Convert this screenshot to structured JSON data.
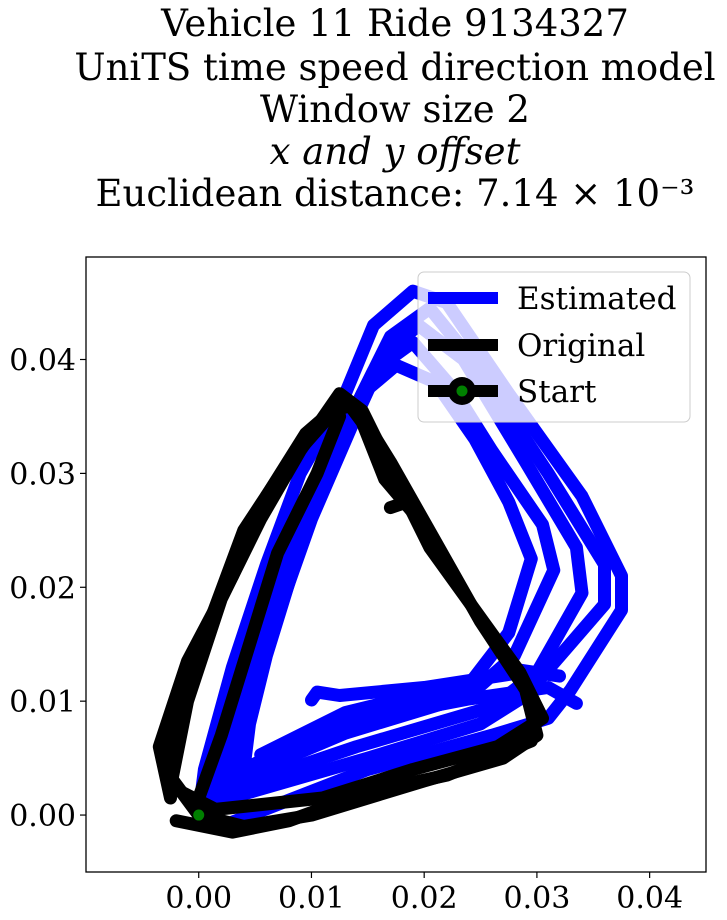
{
  "chart_data": {
    "type": "line",
    "title_lines": [
      "Vehicle 11 Ride 9134327",
      "UniTS time speed direction model",
      "Window size 2",
      "x and y offset",
      "Euclidean distance: 7.14 × 10⁻³"
    ],
    "xlabel": "",
    "ylabel": "",
    "xlim": [
      -0.01,
      0.045
    ],
    "ylim": [
      -0.005,
      0.049
    ],
    "x_ticks": [
      "0.00",
      "0.01",
      "0.02",
      "0.03",
      "0.04"
    ],
    "y_ticks": [
      "0.00",
      "0.01",
      "0.02",
      "0.03",
      "0.04"
    ],
    "x_tick_values": [
      0.0,
      0.01,
      0.02,
      0.03,
      0.04
    ],
    "y_tick_values": [
      0.0,
      0.01,
      0.02,
      0.03,
      0.04
    ],
    "grid": false,
    "legend_position": "top-right",
    "legend": [
      "Estimated",
      "Original",
      "Start"
    ],
    "series": [
      {
        "name": "Estimated",
        "color": "#0000ff",
        "laps": [
          [
            [
              0.0,
              0.0
            ],
            [
              0.002,
              -0.001
            ],
            [
              0.015,
              0.004
            ],
            [
              0.026,
              0.007
            ],
            [
              0.031,
              0.0085
            ],
            [
              0.033,
              0.011
            ],
            [
              0.0375,
              0.018
            ],
            [
              0.0375,
              0.021
            ],
            [
              0.034,
              0.028
            ],
            [
              0.0275,
              0.037
            ],
            [
              0.022,
              0.045
            ],
            [
              0.019,
              0.046
            ],
            [
              0.0155,
              0.043
            ],
            [
              0.013,
              0.037
            ],
            [
              0.009,
              0.03
            ],
            [
              0.006,
              0.022
            ],
            [
              0.003,
              0.013
            ],
            [
              0.0005,
              0.004
            ],
            [
              0.0,
              0.0
            ]
          ],
          [
            [
              0.001,
              0.001
            ],
            [
              0.015,
              0.005
            ],
            [
              0.025,
              0.008
            ],
            [
              0.029,
              0.0105
            ],
            [
              0.036,
              0.0185
            ],
            [
              0.036,
              0.022
            ],
            [
              0.031,
              0.03
            ],
            [
              0.025,
              0.039
            ],
            [
              0.0205,
              0.0445
            ],
            [
              0.017,
              0.042
            ],
            [
              0.014,
              0.036
            ],
            [
              0.01,
              0.028
            ],
            [
              0.007,
              0.02
            ],
            [
              0.0035,
              0.011
            ],
            [
              0.001,
              0.001
            ]
          ],
          [
            [
              0.002,
              0.002
            ],
            [
              0.014,
              0.006
            ],
            [
              0.026,
              0.0095
            ],
            [
              0.03,
              0.0125
            ],
            [
              0.034,
              0.0195
            ],
            [
              0.0335,
              0.0235
            ],
            [
              0.029,
              0.031
            ],
            [
              0.0235,
              0.04
            ],
            [
              0.0195,
              0.043
            ],
            [
              0.0165,
              0.0405
            ],
            [
              0.0135,
              0.034
            ],
            [
              0.01,
              0.026
            ],
            [
              0.0075,
              0.019
            ],
            [
              0.004,
              0.0095
            ],
            [
              0.002,
              0.002
            ]
          ],
          [
            [
              0.003,
              0.003
            ],
            [
              0.013,
              0.0072
            ],
            [
              0.024,
              0.0105
            ],
            [
              0.028,
              0.014
            ],
            [
              0.0315,
              0.0215
            ],
            [
              0.0305,
              0.0255
            ],
            [
              0.026,
              0.032
            ],
            [
              0.0225,
              0.0375
            ],
            [
              0.019,
              0.0415
            ],
            [
              0.0155,
              0.039
            ],
            [
              0.012,
              0.032
            ],
            [
              0.009,
              0.024
            ],
            [
              0.0065,
              0.016
            ],
            [
              0.004,
              0.0075
            ],
            [
              0.003,
              0.003
            ]
          ],
          [
            [
              0.004,
              0.004
            ],
            [
              0.012,
              0.008
            ],
            [
              0.024,
              0.0115
            ],
            [
              0.0275,
              0.016
            ],
            [
              0.0295,
              0.0225
            ],
            [
              0.0275,
              0.0275
            ],
            [
              0.0245,
              0.033
            ],
            [
              0.021,
              0.038
            ],
            [
              0.0175,
              0.0395
            ],
            [
              0.0145,
              0.037
            ],
            [
              0.011,
              0.029
            ],
            [
              0.0085,
              0.022
            ],
            [
              0.006,
              0.014
            ],
            [
              0.0045,
              0.008
            ],
            [
              0.004,
              0.004
            ]
          ],
          [
            [
              0.0055,
              0.0053
            ],
            [
              0.013,
              0.009
            ],
            [
              0.0225,
              0.0113
            ],
            [
              0.028,
              0.0128
            ],
            [
              0.032,
              0.0122
            ]
          ],
          [
            [
              0.008,
              0.006
            ],
            [
              0.015,
              0.0085
            ],
            [
              0.024,
              0.0102
            ],
            [
              0.031,
              0.0112
            ],
            [
              0.0335,
              0.0098
            ]
          ],
          [
            [
              0.01,
              0.0101
            ],
            [
              0.0105,
              0.0108
            ],
            [
              0.0125,
              0.0105
            ],
            [
              0.02,
              0.0112
            ],
            [
              0.0285,
              0.0125
            ]
          ]
        ]
      },
      {
        "name": "Original",
        "color": "#000000",
        "laps": [
          [
            [
              0.0,
              0.0
            ],
            [
              -0.003,
              0.004
            ],
            [
              -0.002,
              0.009
            ],
            [
              0.001,
              0.017
            ],
            [
              0.004,
              0.025
            ],
            [
              0.008,
              0.031
            ],
            [
              0.012,
              0.0355
            ],
            [
              0.0135,
              0.036
            ],
            [
              0.0145,
              0.035
            ],
            [
              0.017,
              0.031
            ],
            [
              0.021,
              0.024
            ],
            [
              0.025,
              0.017
            ],
            [
              0.029,
              0.011
            ],
            [
              0.03,
              0.007
            ],
            [
              0.027,
              0.005
            ],
            [
              0.02,
              0.003
            ],
            [
              0.01,
              0.0
            ],
            [
              0.004,
              -0.001
            ],
            [
              0.0,
              0.0
            ]
          ],
          [
            [
              0.0015,
              0.0005
            ],
            [
              -0.0025,
              0.0025
            ],
            [
              -0.001,
              0.01
            ],
            [
              0.002,
              0.019
            ],
            [
              0.0055,
              0.026
            ],
            [
              0.009,
              0.032
            ],
            [
              0.0125,
              0.037
            ],
            [
              0.0145,
              0.0355
            ],
            [
              0.0175,
              0.0295
            ],
            [
              0.0205,
              0.0235
            ],
            [
              0.0245,
              0.018
            ],
            [
              0.0285,
              0.0125
            ],
            [
              0.0305,
              0.0085
            ],
            [
              0.0265,
              0.006
            ],
            [
              0.019,
              0.004
            ],
            [
              0.011,
              0.0015
            ],
            [
              0.0015,
              0.0005
            ]
          ],
          [
            [
              -0.0025,
              0.0015
            ],
            [
              -0.0035,
              0.006
            ],
            [
              -0.001,
              0.0135
            ],
            [
              0.003,
              0.021
            ],
            [
              0.006,
              0.028
            ],
            [
              0.0095,
              0.0335
            ],
            [
              0.013,
              0.0365
            ],
            [
              0.0145,
              0.0345
            ],
            [
              0.0165,
              0.0295
            ],
            [
              0.0195,
              0.026
            ],
            [
              0.0185,
              0.0275
            ],
            [
              0.017,
              0.027
            ]
          ],
          [
            [
              -0.002,
              -0.0005
            ],
            [
              0.003,
              -0.0015
            ],
            [
              0.008,
              -0.0005
            ],
            [
              0.015,
              0.002
            ],
            [
              0.022,
              0.0035
            ],
            [
              0.027,
              0.0055
            ],
            [
              0.0295,
              0.0065
            ]
          ],
          [
            [
              0.0,
              0.0015
            ],
            [
              0.002,
              0.007
            ],
            [
              0.0045,
              0.015
            ],
            [
              0.007,
              0.023
            ],
            [
              0.0105,
              0.03
            ],
            [
              0.0125,
              0.035
            ]
          ]
        ]
      }
    ],
    "start_point": {
      "name": "Start",
      "x": 0.0,
      "y": 0.0,
      "color": "#008000"
    }
  }
}
